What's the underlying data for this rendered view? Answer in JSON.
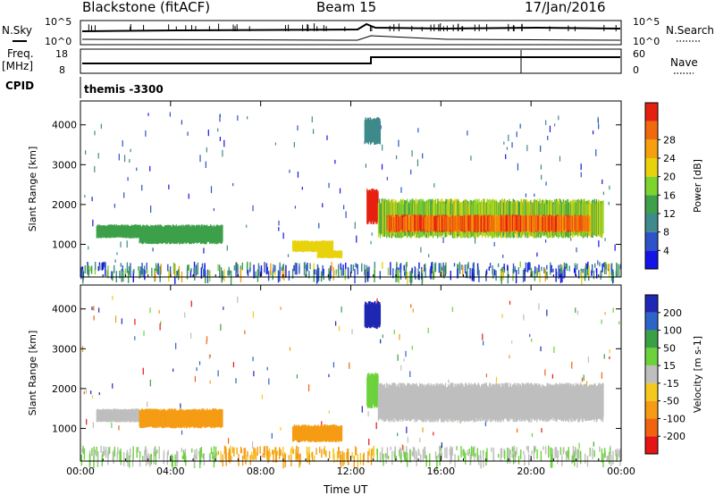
{
  "header": {
    "station": "Blackstone (fitACF)",
    "beam": "Beam 15",
    "date": "17/Jan/2016"
  },
  "top_panel": {
    "left_label": "N.Sky",
    "right_label": "N.Search",
    "left_ticks": [
      "10^5",
      "10^0"
    ],
    "right_ticks": [
      "10^5",
      "10^0"
    ],
    "freq_label_line1": "Freq.",
    "freq_label_line2": "[MHz]",
    "freq_ticks": [
      "18",
      "8"
    ],
    "nave_label": "Nave",
    "nave_ticks": [
      "60",
      "0"
    ],
    "cpid_label": "CPID",
    "cpid_value": "themis -3300"
  },
  "colors": {
    "power_scale": [
      "#1414e6",
      "#2d53c8",
      "#3f8a8a",
      "#3da04a",
      "#7cd42c",
      "#e8d20c",
      "#f5a00c",
      "#f06a0c",
      "#e62010"
    ],
    "velocity_scale": [
      "#e61414",
      "#f06410",
      "#f59c14",
      "#f5c81e",
      "#bebebe",
      "#6cd23c",
      "#3aa046",
      "#2d64c8",
      "#1e28b4"
    ]
  },
  "chart_data": [
    {
      "type": "heatmap",
      "name": "power",
      "xlabel": "",
      "ylabel": "Slant Range [km]",
      "x_ticks": [
        "00:00",
        "04:00",
        "08:00",
        "12:00",
        "16:00",
        "20:00",
        "00:00"
      ],
      "y_ticks": [
        "1000",
        "2000",
        "3000",
        "4000"
      ],
      "ylim": [
        180,
        4600
      ],
      "colorbar_label": "Power [dB]",
      "colorbar_ticks": [
        "4",
        "8",
        "12",
        "16",
        "20",
        "24",
        "28"
      ],
      "clim": [
        0,
        32
      ],
      "regions": [
        {
          "t0": 0.7,
          "t1": 2.6,
          "r0": 1150,
          "r1": 1500,
          "level": 3
        },
        {
          "t0": 2.6,
          "t1": 6.3,
          "r0": 1000,
          "r1": 1500,
          "level": 3
        },
        {
          "t0": 9.4,
          "t1": 11.2,
          "r0": 800,
          "r1": 1100,
          "level": 5
        },
        {
          "t0": 10.5,
          "t1": 11.6,
          "r0": 650,
          "r1": 850,
          "level": 5
        },
        {
          "t0": 12.7,
          "t1": 13.2,
          "r0": 1500,
          "r1": 2400,
          "level": 8
        },
        {
          "t0": 12.6,
          "t1": 13.3,
          "r0": 3500,
          "r1": 4200,
          "level": 2
        },
        {
          "t0": 13.2,
          "t1": 23.2,
          "r0": 1150,
          "r1": 2150,
          "level": 4
        },
        {
          "t0": 13.6,
          "t1": 22.6,
          "r0": 1300,
          "r1": 1750,
          "level": 8
        }
      ]
    },
    {
      "type": "heatmap",
      "name": "velocity",
      "xlabel": "Time UT",
      "ylabel": "Slant Range [km]",
      "x_ticks": [
        "00:00",
        "04:00",
        "08:00",
        "12:00",
        "16:00",
        "20:00",
        "00:00"
      ],
      "y_ticks": [
        "1000",
        "2000",
        "3000",
        "4000"
      ],
      "ylim": [
        180,
        4600
      ],
      "colorbar_label": "Velocity [m s-1]",
      "colorbar_ticks": [
        "200",
        "100",
        "50",
        "15",
        "-15",
        "-50",
        "-100",
        "-200"
      ],
      "clim": [
        -250,
        250
      ],
      "regions": [
        {
          "t0": 0.7,
          "t1": 2.6,
          "r0": 1150,
          "r1": 1500,
          "level": 4
        },
        {
          "t0": 2.6,
          "t1": 6.3,
          "r0": 1000,
          "r1": 1500,
          "level": 2
        },
        {
          "t0": 9.4,
          "t1": 11.6,
          "r0": 650,
          "r1": 1100,
          "level": 2
        },
        {
          "t0": 12.7,
          "t1": 13.2,
          "r0": 1500,
          "r1": 2400,
          "level": 5
        },
        {
          "t0": 12.6,
          "t1": 13.3,
          "r0": 3500,
          "r1": 4200,
          "level": 8
        },
        {
          "t0": 13.2,
          "t1": 23.2,
          "r0": 1150,
          "r1": 2150,
          "level": 4
        }
      ]
    }
  ]
}
